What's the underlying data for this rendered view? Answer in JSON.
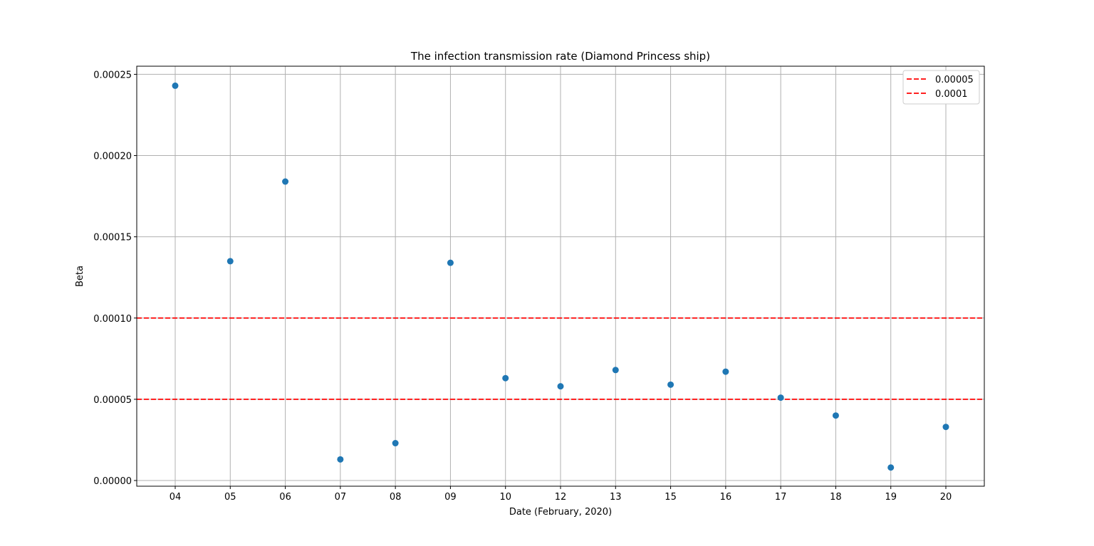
{
  "chart_data": {
    "type": "scatter",
    "title": "The infection transmission rate (Diamond Princess ship)",
    "xlabel": "Date (February, 2020)",
    "ylabel": "Beta",
    "categories": [
      "04",
      "05",
      "06",
      "07",
      "08",
      "09",
      "10",
      "12",
      "13",
      "15",
      "16",
      "17",
      "18",
      "19",
      "20"
    ],
    "series": [
      {
        "values": [
          0.000243,
          0.000135,
          0.000184,
          1.3e-05,
          2.3e-05,
          0.000134,
          6.3e-05,
          5.8e-05,
          6.8e-05,
          5.9e-05,
          6.7e-05,
          5.1e-05,
          4e-05,
          8e-06,
          3.3e-05
        ],
        "color": "#1f77b4"
      }
    ],
    "reference_lines": [
      {
        "name": "0.00005",
        "value": 5e-05,
        "color": "#ff0000"
      },
      {
        "name": "0.0001",
        "value": 0.0001,
        "color": "#ff0000"
      }
    ],
    "ylim": [
      -3.5e-06,
      0.000255
    ],
    "yticks": [
      {
        "value": 0,
        "label": "0.00000"
      },
      {
        "value": 5e-05,
        "label": "0.00005"
      },
      {
        "value": 0.0001,
        "label": "0.00010"
      },
      {
        "value": 0.00015,
        "label": "0.00015"
      },
      {
        "value": 0.0002,
        "label": "0.00020"
      },
      {
        "value": 0.00025,
        "label": "0.00025"
      }
    ],
    "grid": true,
    "legend_position": "top-right"
  }
}
